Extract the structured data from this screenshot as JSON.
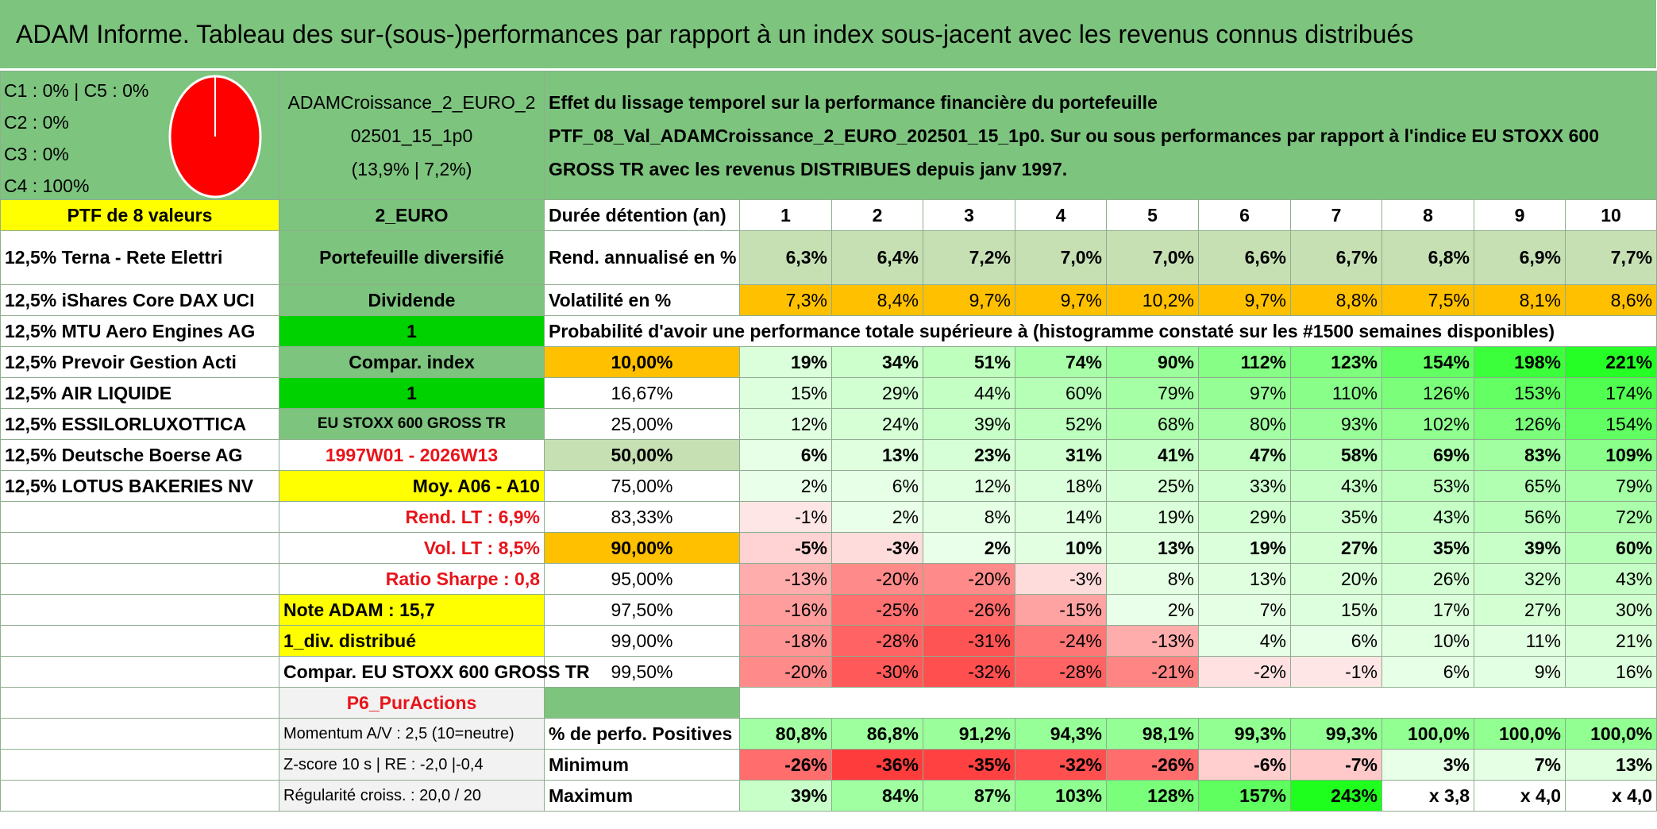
{
  "title": "ADAM Informe. Tableau des sur-(sous-)performances par rapport à un index sous-jacent avec les revenus connus distribués",
  "header": {
    "concentration": [
      "C1 : 0% | C5 : 0%",
      "C2 : 0%",
      "C3 : 0%",
      "C4 : 100%"
    ],
    "fund_line1": "ADAMCroissance_2_EURO_2",
    "fund_line2": "02501_15_1p0",
    "fund_line3": "(13,9% | 7,2%)",
    "desc_line1": "Effet du lissage temporel sur la performance financière du portefeuille",
    "desc_line2": "PTF_08_Val_ADAMCroissance_2_EURO_202501_15_1p0. Sur ou sous performances par rapport à l'indice EU STOXX 600",
    "desc_line3": "GROSS TR avec les revenus DISTRIBUES depuis janv 1997."
  },
  "colors": {
    "pie": "#ff0000",
    "title_bg": "#7dc47e"
  },
  "col1": [
    "PTF de 8 valeurs",
    "12,5% Terna - Rete Elettri",
    "12,5% iShares Core DAX UCI",
    "12,5% MTU Aero Engines AG",
    "12,5% Prevoir Gestion Acti",
    "12,5% AIR LIQUIDE",
    "12,5% ESSILORLUXOTTICA",
    "12,5% Deutsche Boerse AG",
    "12,5% LOTUS BAKERIES NV"
  ],
  "col2": [
    "2_EURO",
    "Portefeuille diversifié",
    "Dividende",
    "1",
    "Compar. index",
    "1",
    "EU STOXX 600 GROSS TR",
    "1997W01 - 2026W13",
    "Moy. A06 - A10",
    "Rend. LT : 6,9%",
    "Vol. LT : 8,5%",
    "Ratio Sharpe : 0,8",
    "Note ADAM : 15,7",
    "1_div. distribué",
    "Compar. EU STOXX 600 GROSS TR",
    "P6_PurActions",
    "Momentum A/V : 2,5 (10=neutre)",
    "Z-score 10 s | RE : -2,0 |-0,4",
    "Régularité croiss. : 20,0 / 20"
  ],
  "stats": {
    "duration_label": "Durée détention (an)",
    "years": [
      "1",
      "2",
      "3",
      "4",
      "5",
      "6",
      "7",
      "8",
      "9",
      "10"
    ],
    "rend_label": "Rend. annualisé en %",
    "rend": [
      "6,3%",
      "6,4%",
      "7,2%",
      "7,0%",
      "7,0%",
      "6,6%",
      "6,7%",
      "6,8%",
      "6,9%",
      "7,7%"
    ],
    "vol_label": "Volatilité en %",
    "vol": [
      "7,3%",
      "8,4%",
      "9,7%",
      "9,7%",
      "10,2%",
      "9,7%",
      "8,8%",
      "7,5%",
      "8,1%",
      "8,6%"
    ],
    "proba_label": "Probabilité d'avoir une performance totale supérieure à (histogramme constaté sur les #1500 semaines disponibles)"
  },
  "quantiles": [
    {
      "p": "10,00%",
      "v": [
        "19%",
        "34%",
        "51%",
        "74%",
        "90%",
        "112%",
        "123%",
        "154%",
        "198%",
        "221%"
      ]
    },
    {
      "p": "16,67%",
      "v": [
        "15%",
        "29%",
        "44%",
        "60%",
        "79%",
        "97%",
        "110%",
        "126%",
        "153%",
        "174%"
      ]
    },
    {
      "p": "25,00%",
      "v": [
        "12%",
        "24%",
        "39%",
        "52%",
        "68%",
        "80%",
        "93%",
        "102%",
        "126%",
        "154%"
      ]
    },
    {
      "p": "50,00%",
      "v": [
        "6%",
        "13%",
        "23%",
        "31%",
        "41%",
        "47%",
        "58%",
        "69%",
        "83%",
        "109%"
      ]
    },
    {
      "p": "75,00%",
      "v": [
        "2%",
        "6%",
        "12%",
        "18%",
        "25%",
        "33%",
        "43%",
        "53%",
        "65%",
        "79%"
      ]
    },
    {
      "p": "83,33%",
      "v": [
        "-1%",
        "2%",
        "8%",
        "14%",
        "19%",
        "29%",
        "35%",
        "43%",
        "56%",
        "72%"
      ]
    },
    {
      "p": "90,00%",
      "v": [
        "-5%",
        "-3%",
        "2%",
        "10%",
        "13%",
        "19%",
        "27%",
        "35%",
        "39%",
        "60%"
      ]
    },
    {
      "p": "95,00%",
      "v": [
        "-13%",
        "-20%",
        "-20%",
        "-3%",
        "8%",
        "13%",
        "20%",
        "26%",
        "32%",
        "43%"
      ]
    },
    {
      "p": "97,50%",
      "v": [
        "-16%",
        "-25%",
        "-26%",
        "-15%",
        "2%",
        "7%",
        "15%",
        "17%",
        "27%",
        "30%"
      ]
    },
    {
      "p": "99,00%",
      "v": [
        "-18%",
        "-28%",
        "-31%",
        "-24%",
        "-13%",
        "4%",
        "6%",
        "10%",
        "11%",
        "21%"
      ]
    },
    {
      "p": "99,50%",
      "v": [
        "-20%",
        "-30%",
        "-32%",
        "-28%",
        "-21%",
        "-2%",
        "-1%",
        "6%",
        "9%",
        "16%"
      ]
    }
  ],
  "summary": {
    "pos_label": "% de perfo. Positives",
    "pos": [
      "80,8%",
      "86,8%",
      "91,2%",
      "94,3%",
      "98,1%",
      "99,3%",
      "99,3%",
      "100,0%",
      "100,0%",
      "100,0%"
    ],
    "min_label": "Minimum",
    "min": [
      "-26%",
      "-36%",
      "-35%",
      "-32%",
      "-26%",
      "-6%",
      "-7%",
      "3%",
      "7%",
      "13%"
    ],
    "max_label": "Maximum",
    "max": [
      "39%",
      "84%",
      "87%",
      "103%",
      "128%",
      "157%",
      "243%",
      "x 3,8",
      "x 4,0",
      "x 4,0"
    ]
  }
}
